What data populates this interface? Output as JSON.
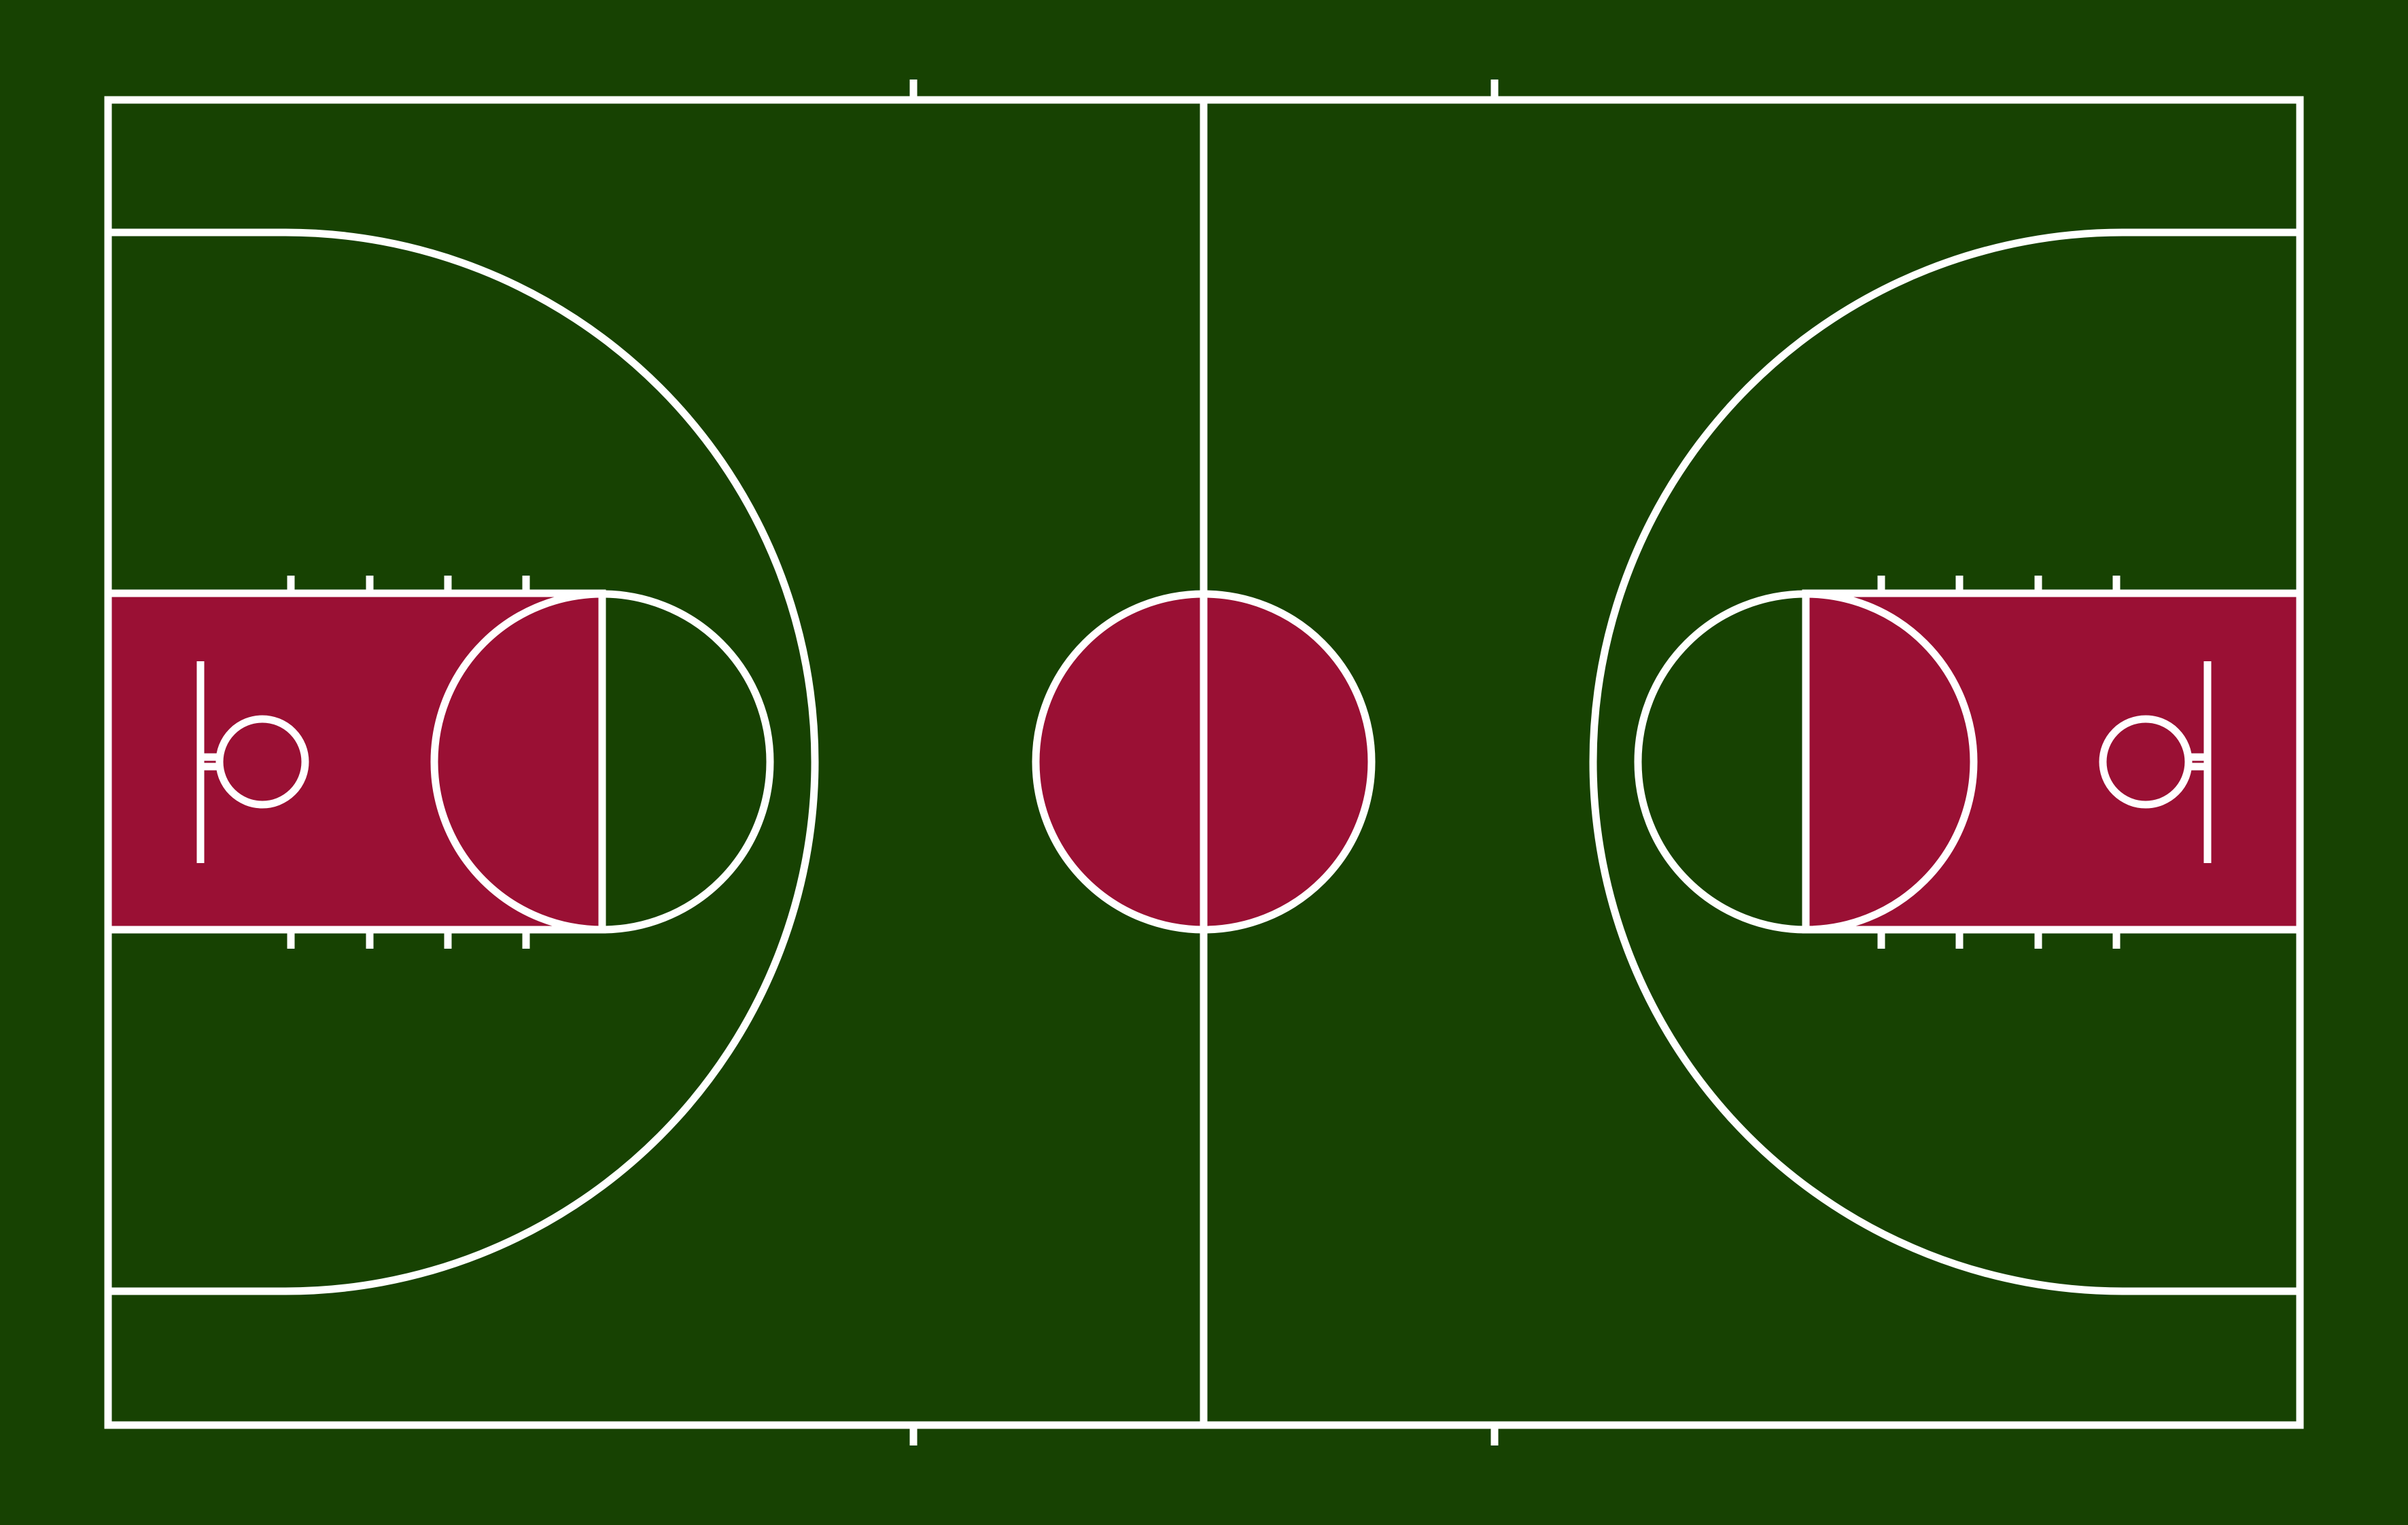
{
  "court": {
    "colors": {
      "surround": "#174202",
      "court_floor": "#174202",
      "paint": "#9a1034",
      "line": "#ffffff"
    }
  }
}
